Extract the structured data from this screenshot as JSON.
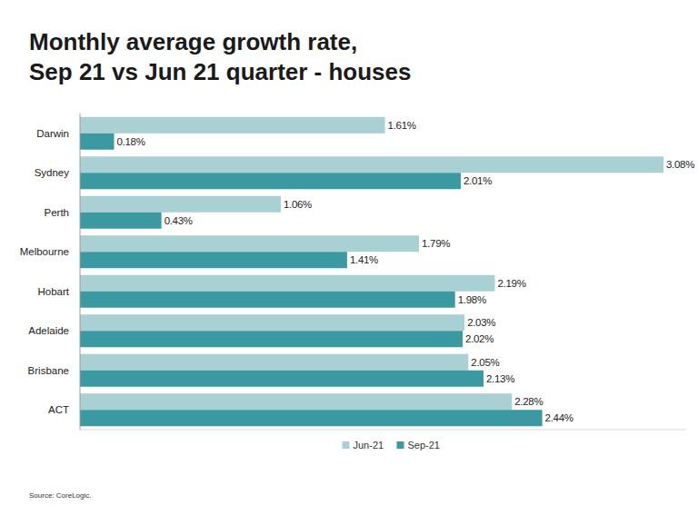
{
  "chart_data": {
    "type": "bar",
    "orientation": "horizontal",
    "title": "Monthly average growth rate, Sep 21 vs Jun 21 quarter - houses",
    "categories": [
      "Darwin",
      "Sydney",
      "Perth",
      "Melbourne",
      "Hobart",
      "Adelaide",
      "Brisbane",
      "ACT"
    ],
    "series": [
      {
        "name": "Jun-21",
        "color": "#a9d1d4",
        "values": [
          1.61,
          3.08,
          1.06,
          1.79,
          2.19,
          2.03,
          2.05,
          2.28
        ],
        "value_labels": [
          "1.61%",
          "3.08%",
          "1.06%",
          "1.79%",
          "2.19%",
          "2.03%",
          "2.05%",
          "2.28%"
        ]
      },
      {
        "name": "Sep-21",
        "color": "#3b9aa1",
        "values": [
          0.18,
          2.01,
          0.43,
          1.41,
          1.98,
          2.02,
          2.13,
          2.44
        ],
        "value_labels": [
          "0.18%",
          "2.01%",
          "0.43%",
          "1.41%",
          "1.98%",
          "2.02%",
          "2.13%",
          "2.44%"
        ]
      }
    ],
    "xlim": [
      0,
      3.2
    ],
    "tick_labels": false,
    "data_labels": true,
    "legend": "bottom",
    "annotations": [
      "Source: CoreLogic."
    ]
  }
}
